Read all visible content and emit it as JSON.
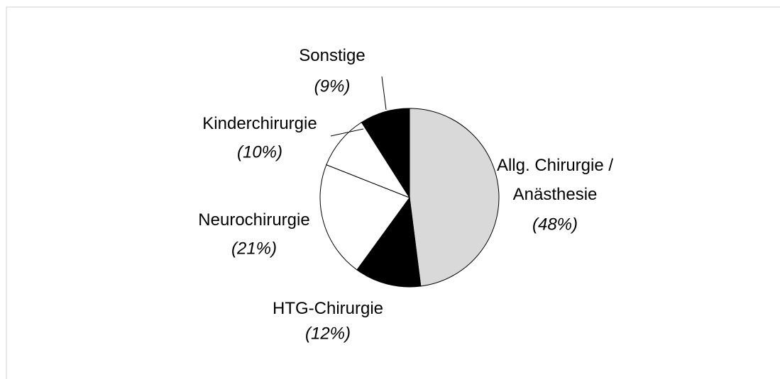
{
  "chart_data": {
    "type": "pie",
    "categories": [
      "Allg. Chirurgie / Anästhesie",
      "HTG-Chirurgie",
      "Neurochirurgie",
      "Kinderchirurgie",
      "Sonstige"
    ],
    "values": [
      48,
      12,
      21,
      10,
      9
    ],
    "value_labels": [
      "(48%)",
      "(12%)",
      "(21%)",
      "(10%)",
      "(9%)"
    ],
    "colors": [
      "#d9d9d9",
      "#000000",
      "#ffffff",
      "#ffffff",
      "#000000"
    ]
  }
}
